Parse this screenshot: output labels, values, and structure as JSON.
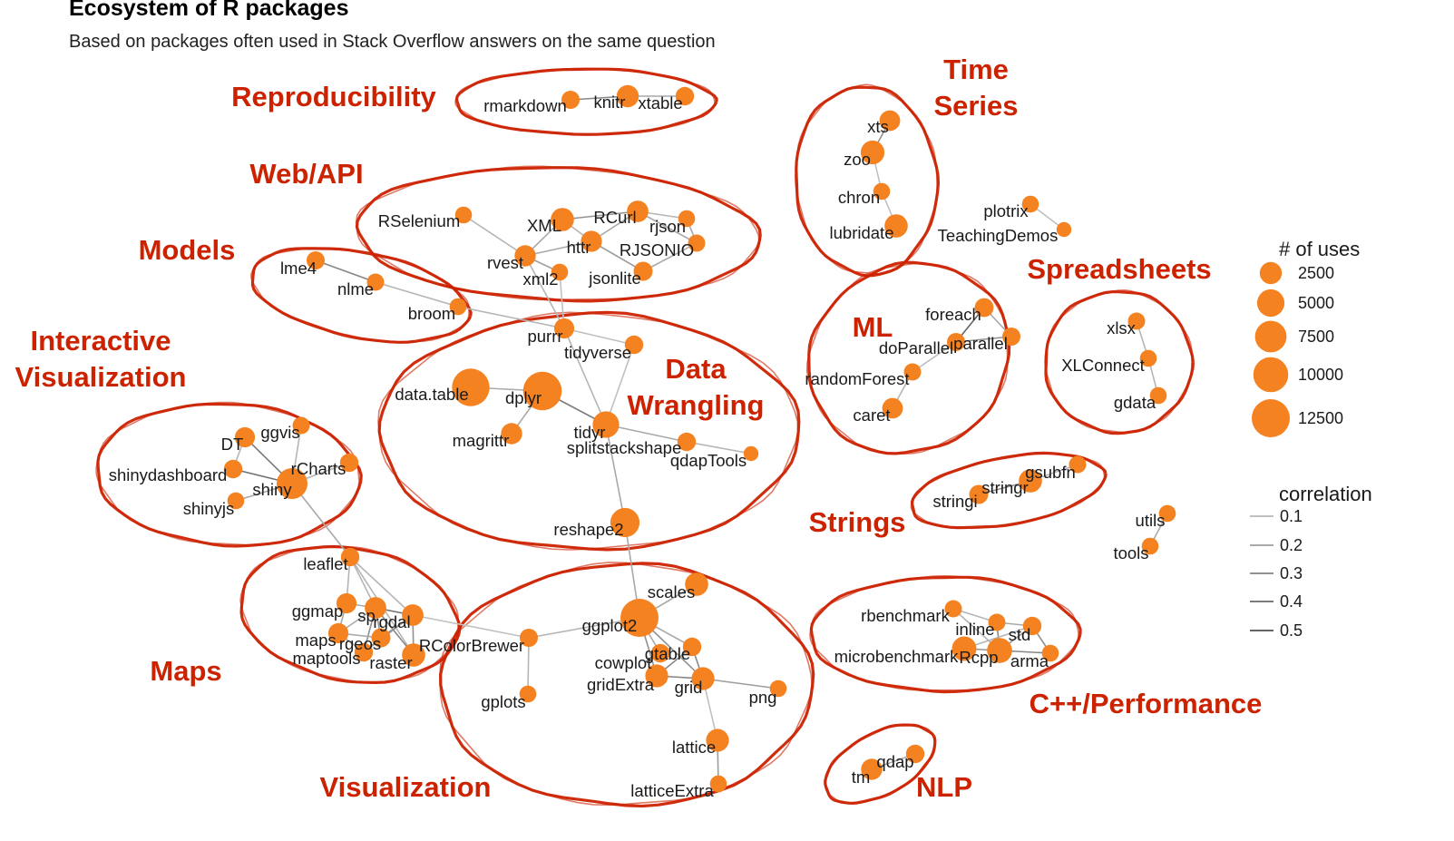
{
  "title": "Ecosystem of R packages",
  "subtitle": "Based on packages often used in Stack Overflow answers on the same question",
  "colors": {
    "node": "#f58220",
    "group": "#cc2200",
    "edge": "#666666"
  },
  "nodes": [
    {
      "id": "rmarkdown",
      "label": "rmarkdown",
      "uses": 1200
    },
    {
      "id": "knitr",
      "label": "knitr",
      "uses": 2500
    },
    {
      "id": "xtable",
      "label": "xtable",
      "uses": 1300
    },
    {
      "id": "xts",
      "label": "xts",
      "uses": 2000
    },
    {
      "id": "zoo",
      "label": "zoo",
      "uses": 3200
    },
    {
      "id": "chron",
      "label": "chron",
      "uses": 900
    },
    {
      "id": "lubridate",
      "label": "lubridate",
      "uses": 3000
    },
    {
      "id": "plotrix",
      "label": "plotrix",
      "uses": 900
    },
    {
      "id": "TeachingDemos",
      "label": "TeachingDemos",
      "uses": 500
    },
    {
      "id": "RSelenium",
      "label": "RSelenium",
      "uses": 900
    },
    {
      "id": "XML",
      "label": "XML",
      "uses": 3000
    },
    {
      "id": "RCurl",
      "label": "RCurl",
      "uses": 2300
    },
    {
      "id": "rjson",
      "label": "rjson",
      "uses": 900
    },
    {
      "id": "httr",
      "label": "httr",
      "uses": 2100
    },
    {
      "id": "RJSONIO",
      "label": "RJSONIO",
      "uses": 1000
    },
    {
      "id": "rvest",
      "label": "rvest",
      "uses": 2200
    },
    {
      "id": "xml2",
      "label": "xml2",
      "uses": 900
    },
    {
      "id": "jsonlite",
      "label": "jsonlite",
      "uses": 1500
    },
    {
      "id": "lme4",
      "label": "lme4",
      "uses": 1200
    },
    {
      "id": "nlme",
      "label": "nlme",
      "uses": 1000
    },
    {
      "id": "broom",
      "label": "broom",
      "uses": 900
    },
    {
      "id": "purrr",
      "label": "purrr",
      "uses": 1800
    },
    {
      "id": "tidyverse",
      "label": "tidyverse",
      "uses": 1300
    },
    {
      "id": "data.table",
      "label": "data.table",
      "uses": 12000
    },
    {
      "id": "dplyr",
      "label": "dplyr",
      "uses": 13000
    },
    {
      "id": "magrittr",
      "label": "magrittr",
      "uses": 2200
    },
    {
      "id": "tidyr",
      "label": "tidyr",
      "uses": 4500
    },
    {
      "id": "splitstackshape",
      "label": "splitstackshape",
      "uses": 1300
    },
    {
      "id": "qdapTools",
      "label": "qdapTools",
      "uses": 500
    },
    {
      "id": "reshape2",
      "label": "reshape2",
      "uses": 6000
    },
    {
      "id": "foreach",
      "label": "foreach",
      "uses": 1400
    },
    {
      "id": "doParallel",
      "label": "doParallel",
      "uses": 1200
    },
    {
      "id": "parallel",
      "label": "parallel",
      "uses": 1200
    },
    {
      "id": "randomForest",
      "label": "randomForest",
      "uses": 1000
    },
    {
      "id": "caret",
      "label": "caret",
      "uses": 2000
    },
    {
      "id": "xlsx",
      "label": "xlsx",
      "uses": 1000
    },
    {
      "id": "XLConnect",
      "label": "XLConnect",
      "uses": 900
    },
    {
      "id": "gdata",
      "label": "gdata",
      "uses": 900
    },
    {
      "id": "ggvis",
      "label": "ggvis",
      "uses": 1000
    },
    {
      "id": "DT",
      "label": "DT",
      "uses": 1800
    },
    {
      "id": "rCharts",
      "label": "rCharts",
      "uses": 1300
    },
    {
      "id": "shinydashboard",
      "label": "shinydashboard",
      "uses": 1300
    },
    {
      "id": "shiny",
      "label": "shiny",
      "uses": 7000
    },
    {
      "id": "shinyjs",
      "label": "shinyjs",
      "uses": 900
    },
    {
      "id": "gsubfn",
      "label": "gsubfn",
      "uses": 1000
    },
    {
      "id": "stringr",
      "label": "stringr",
      "uses": 3000
    },
    {
      "id": "stringi",
      "label": "stringi",
      "uses": 1500
    },
    {
      "id": "utils",
      "label": "utils",
      "uses": 900
    },
    {
      "id": "tools",
      "label": "tools",
      "uses": 900
    },
    {
      "id": "leaflet",
      "label": "leaflet",
      "uses": 1300
    },
    {
      "id": "ggmap",
      "label": "ggmap",
      "uses": 1800
    },
    {
      "id": "sp",
      "label": "sp",
      "uses": 2300
    },
    {
      "id": "rgdal",
      "label": "rgdal",
      "uses": 2300
    },
    {
      "id": "maps",
      "label": "maps",
      "uses": 1800
    },
    {
      "id": "rgeos",
      "label": "rgeos",
      "uses": 1500
    },
    {
      "id": "maptools",
      "label": "maptools",
      "uses": 1300
    },
    {
      "id": "raster",
      "label": "raster",
      "uses": 3000
    },
    {
      "id": "RColorBrewer",
      "label": "RColorBrewer",
      "uses": 1200
    },
    {
      "id": "scales",
      "label": "scales",
      "uses": 3000
    },
    {
      "id": "ggplot2",
      "label": "ggplot2",
      "uses": 12500
    },
    {
      "id": "gplots",
      "label": "gplots",
      "uses": 900
    },
    {
      "id": "cowplot",
      "label": "cowplot",
      "uses": 1300
    },
    {
      "id": "gtable",
      "label": "gtable",
      "uses": 1300
    },
    {
      "id": "gridExtra",
      "label": "gridExtra",
      "uses": 2800
    },
    {
      "id": "grid",
      "label": "grid",
      "uses": 2800
    },
    {
      "id": "png",
      "label": "png",
      "uses": 900
    },
    {
      "id": "lattice",
      "label": "lattice",
      "uses": 2800
    },
    {
      "id": "latticeExtra",
      "label": "latticeExtra",
      "uses": 900
    },
    {
      "id": "rbenchmark",
      "label": "rbenchmark",
      "uses": 1000
    },
    {
      "id": "inline",
      "label": "inline",
      "uses": 1000
    },
    {
      "id": "std",
      "label": "std",
      "uses": 1300
    },
    {
      "id": "microbenchmark",
      "label": "microbenchmark",
      "uses": 3500
    },
    {
      "id": "Rcpp",
      "label": "Rcpp",
      "uses": 3800
    },
    {
      "id": "arma",
      "label": "arma",
      "uses": 900
    },
    {
      "id": "tm",
      "label": "tm",
      "uses": 2200
    },
    {
      "id": "qdap",
      "label": "qdap",
      "uses": 1300
    }
  ],
  "edges": [
    {
      "source": "rmarkdown",
      "target": "knitr",
      "correlation": 0.35
    },
    {
      "source": "knitr",
      "target": "xtable",
      "correlation": 0.2
    },
    {
      "source": "xts",
      "target": "zoo",
      "correlation": 0.3
    },
    {
      "source": "zoo",
      "target": "chron",
      "correlation": 0.1
    },
    {
      "source": "chron",
      "target": "lubridate",
      "correlation": 0.1
    },
    {
      "source": "plotrix",
      "target": "TeachingDemos",
      "correlation": 0.1
    },
    {
      "source": "RSelenium",
      "target": "rvest",
      "correlation": 0.15
    },
    {
      "source": "XML",
      "target": "RCurl",
      "correlation": 0.3
    },
    {
      "source": "XML",
      "target": "rvest",
      "correlation": 0.2
    },
    {
      "source": "XML",
      "target": "httr",
      "correlation": 0.15
    },
    {
      "source": "RCurl",
      "target": "rjson",
      "correlation": 0.15
    },
    {
      "source": "RCurl",
      "target": "RJSONIO",
      "correlation": 0.2
    },
    {
      "source": "RCurl",
      "target": "httr",
      "correlation": 0.2
    },
    {
      "source": "rjson",
      "target": "RJSONIO",
      "correlation": 0.2
    },
    {
      "source": "httr",
      "target": "rvest",
      "correlation": 0.2
    },
    {
      "source": "httr",
      "target": "jsonlite",
      "correlation": 0.25
    },
    {
      "source": "RJSONIO",
      "target": "jsonlite",
      "correlation": 0.2
    },
    {
      "source": "rvest",
      "target": "xml2",
      "correlation": 0.25
    },
    {
      "source": "rvest",
      "target": "purrr",
      "correlation": 0.15
    },
    {
      "source": "xml2",
      "target": "purrr",
      "correlation": 0.1
    },
    {
      "source": "lme4",
      "target": "nlme",
      "correlation": 0.35
    },
    {
      "source": "nlme",
      "target": "broom",
      "correlation": 0.15
    },
    {
      "source": "broom",
      "target": "purrr",
      "correlation": 0.15
    },
    {
      "source": "purrr",
      "target": "tidyverse",
      "correlation": 0.1
    },
    {
      "source": "purrr",
      "target": "tidyr",
      "correlation": 0.15
    },
    {
      "source": "tidyverse",
      "target": "tidyr",
      "correlation": 0.1
    },
    {
      "source": "data.table",
      "target": "dplyr",
      "correlation": 0.2
    },
    {
      "source": "dplyr",
      "target": "magrittr",
      "correlation": 0.2
    },
    {
      "source": "dplyr",
      "target": "tidyr",
      "correlation": 0.4
    },
    {
      "source": "tidyr",
      "target": "splitstackshape",
      "correlation": 0.2
    },
    {
      "source": "splitstackshape",
      "target": "qdapTools",
      "correlation": 0.15
    },
    {
      "source": "tidyr",
      "target": "reshape2",
      "correlation": 0.2
    },
    {
      "source": "reshape2",
      "target": "ggplot2",
      "correlation": 0.2
    },
    {
      "source": "foreach",
      "target": "doParallel",
      "correlation": 0.5
    },
    {
      "source": "foreach",
      "target": "parallel",
      "correlation": 0.2
    },
    {
      "source": "doParallel",
      "target": "parallel",
      "correlation": 0.3
    },
    {
      "source": "doParallel",
      "target": "randomForest",
      "correlation": 0.1
    },
    {
      "source": "randomForest",
      "target": "caret",
      "correlation": 0.15
    },
    {
      "source": "xlsx",
      "target": "XLConnect",
      "correlation": 0.15
    },
    {
      "source": "XLConnect",
      "target": "gdata",
      "correlation": 0.15
    },
    {
      "source": "ggvis",
      "target": "shiny",
      "correlation": 0.15
    },
    {
      "source": "DT",
      "target": "shiny",
      "correlation": 0.4
    },
    {
      "source": "rCharts",
      "target": "shiny",
      "correlation": 0.15
    },
    {
      "source": "shinydashboard",
      "target": "shiny",
      "correlation": 0.45
    },
    {
      "source": "shinyjs",
      "target": "shiny",
      "correlation": 0.2
    },
    {
      "source": "DT",
      "target": "shinydashboard",
      "correlation": 0.15
    },
    {
      "source": "shiny",
      "target": "leaflet",
      "correlation": 0.2
    },
    {
      "source": "gsubfn",
      "target": "stringr",
      "correlation": 0.15
    },
    {
      "source": "stringr",
      "target": "stringi",
      "correlation": 0.3
    },
    {
      "source": "utils",
      "target": "tools",
      "correlation": 0.2
    },
    {
      "source": "leaflet",
      "target": "ggmap",
      "correlation": 0.15
    },
    {
      "source": "leaflet",
      "target": "sp",
      "correlation": 0.15
    },
    {
      "source": "leaflet",
      "target": "rgdal",
      "correlation": 0.15
    },
    {
      "source": "leaflet",
      "target": "raster",
      "correlation": 0.15
    },
    {
      "source": "ggmap",
      "target": "maps",
      "correlation": 0.2
    },
    {
      "source": "ggmap",
      "target": "sp",
      "correlation": 0.2
    },
    {
      "source": "sp",
      "target": "rgdal",
      "correlation": 0.45
    },
    {
      "source": "sp",
      "target": "rgeos",
      "correlation": 0.3
    },
    {
      "source": "sp",
      "target": "maptools",
      "correlation": 0.3
    },
    {
      "source": "sp",
      "target": "raster",
      "correlation": 0.35
    },
    {
      "source": "rgdal",
      "target": "rgeos",
      "correlation": 0.3
    },
    {
      "source": "rgdal",
      "target": "maptools",
      "correlation": 0.3
    },
    {
      "source": "rgdal",
      "target": "raster",
      "correlation": 0.3
    },
    {
      "source": "maps",
      "target": "maptools",
      "correlation": 0.2
    },
    {
      "source": "maps",
      "target": "rgeos",
      "correlation": 0.2
    },
    {
      "source": "rgeos",
      "target": "maptools",
      "correlation": 0.3
    },
    {
      "source": "maps",
      "target": "sp",
      "correlation": 0.2
    },
    {
      "source": "rgdal",
      "target": "RColorBrewer",
      "correlation": 0.1
    },
    {
      "source": "RColorBrewer",
      "target": "ggplot2",
      "correlation": 0.15
    },
    {
      "source": "RColorBrewer",
      "target": "gplots",
      "correlation": 0.15
    },
    {
      "source": "ggplot2",
      "target": "scales",
      "correlation": 0.2
    },
    {
      "source": "ggplot2",
      "target": "gtable",
      "correlation": 0.2
    },
    {
      "source": "ggplot2",
      "target": "gridExtra",
      "correlation": 0.3
    },
    {
      "source": "ggplot2",
      "target": "grid",
      "correlation": 0.3
    },
    {
      "source": "ggplot2",
      "target": "cowplot",
      "correlation": 0.2
    },
    {
      "source": "gtable",
      "target": "gridExtra",
      "correlation": 0.35
    },
    {
      "source": "gtable",
      "target": "grid",
      "correlation": 0.35
    },
    {
      "source": "gridExtra",
      "target": "grid",
      "correlation": 0.35
    },
    {
      "source": "grid",
      "target": "png",
      "correlation": 0.25
    },
    {
      "source": "grid",
      "target": "lattice",
      "correlation": 0.1
    },
    {
      "source": "lattice",
      "target": "latticeExtra",
      "correlation": 0.25
    },
    {
      "source": "rbenchmark",
      "target": "inline",
      "correlation": 0.15
    },
    {
      "source": "rbenchmark",
      "target": "Rcpp",
      "correlation": 0.15
    },
    {
      "source": "inline",
      "target": "std",
      "correlation": 0.2
    },
    {
      "source": "inline",
      "target": "Rcpp",
      "correlation": 0.35
    },
    {
      "source": "std",
      "target": "Rcpp",
      "correlation": 0.3
    },
    {
      "source": "std",
      "target": "arma",
      "correlation": 0.3
    },
    {
      "source": "Rcpp",
      "target": "arma",
      "correlation": 0.35
    },
    {
      "source": "microbenchmark",
      "target": "Rcpp",
      "correlation": 0.3
    },
    {
      "source": "microbenchmark",
      "target": "std",
      "correlation": 0.15
    },
    {
      "source": "tm",
      "target": "qdap",
      "correlation": 0.2
    }
  ],
  "groups": [
    {
      "id": "reproducibility",
      "label": "Reproducibility"
    },
    {
      "id": "web-api",
      "label": "Web/API"
    },
    {
      "id": "models",
      "label": "Models"
    },
    {
      "id": "interactive-visualization",
      "label": "Interactive Visualization"
    },
    {
      "id": "data-wrangling",
      "label": "Data Wrangling"
    },
    {
      "id": "time-series",
      "label": "Time Series"
    },
    {
      "id": "ml",
      "label": "ML"
    },
    {
      "id": "spreadsheets",
      "label": "Spreadsheets"
    },
    {
      "id": "strings",
      "label": "Strings"
    },
    {
      "id": "maps",
      "label": "Maps"
    },
    {
      "id": "visualization",
      "label": "Visualization"
    },
    {
      "id": "cpp-performance",
      "label": "C++/Performance"
    },
    {
      "id": "nlp",
      "label": "NLP"
    }
  ],
  "legend": {
    "size_title": "# of uses",
    "size_breaks": [
      {
        "label": "2500",
        "value": 2500
      },
      {
        "label": "5000",
        "value": 5000
      },
      {
        "label": "7500",
        "value": 7500
      },
      {
        "label": "10000",
        "value": 10000
      },
      {
        "label": "12500",
        "value": 12500
      }
    ],
    "edge_title": "correlation",
    "edge_breaks": [
      {
        "label": "0.1",
        "value": 0.1
      },
      {
        "label": "0.2",
        "value": 0.2
      },
      {
        "label": "0.3",
        "value": 0.3
      },
      {
        "label": "0.4",
        "value": 0.4
      },
      {
        "label": "0.5",
        "value": 0.5
      }
    ]
  }
}
